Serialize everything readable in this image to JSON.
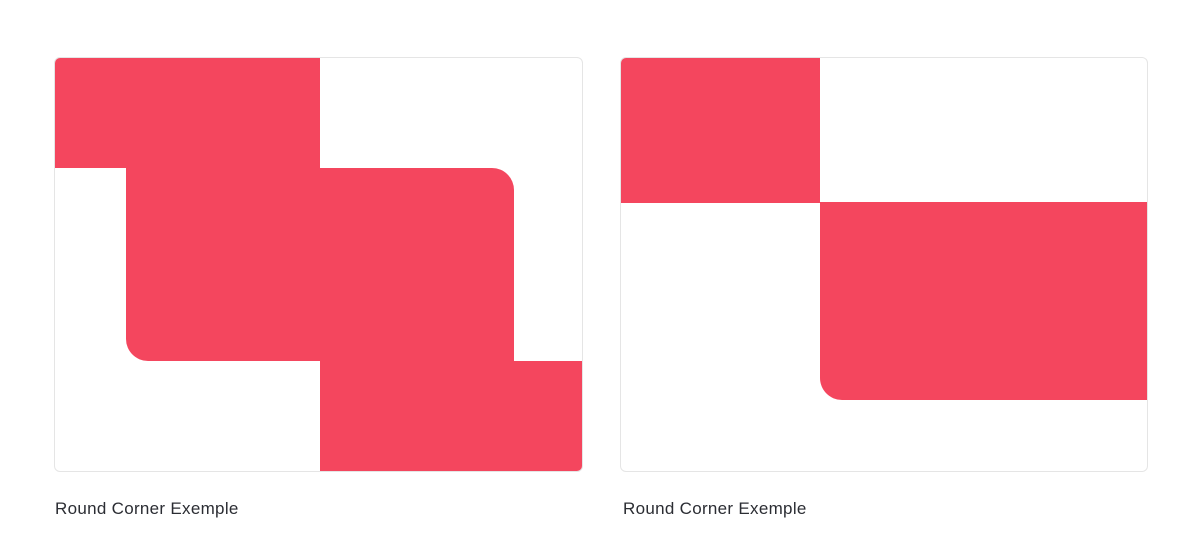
{
  "accent_color": "#f4465e",
  "cards": [
    {
      "caption": "Round Corner Exemple"
    },
    {
      "caption": "Round Corner Exemple"
    }
  ]
}
